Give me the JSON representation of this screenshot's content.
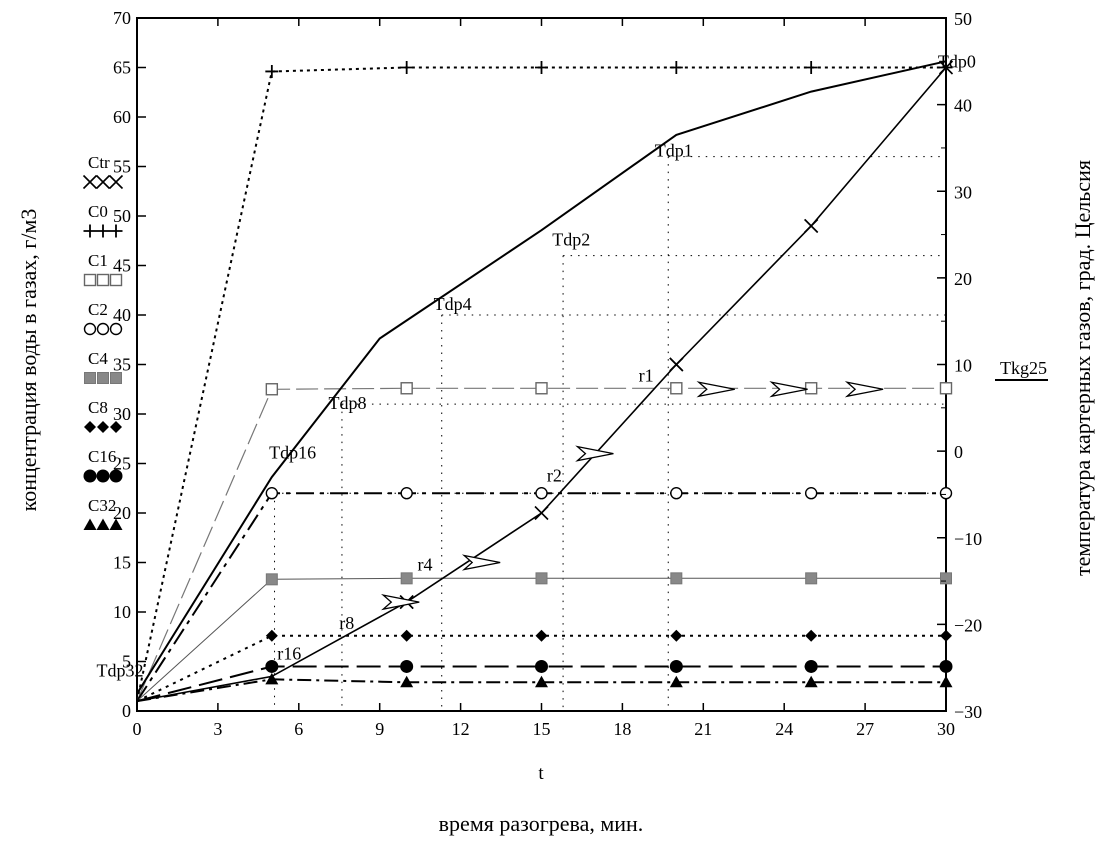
{
  "chart_data": {
    "type": "line",
    "xlabel": "t",
    "xlabel2": "время разогрева, мин.",
    "ylabel_left": "концентрация  воды в газах, г/м3",
    "ylabel_right": "температура картерных газов, град. Цельсия",
    "x_ticks": [
      "0",
      "3",
      "6",
      "9",
      "12",
      "15",
      "18",
      "21",
      "24",
      "27",
      "30"
    ],
    "y_left_ticks": [
      "0",
      "5",
      "10",
      "15",
      "20",
      "25",
      "30",
      "35",
      "40",
      "45",
      "50",
      "55",
      "60",
      "65",
      "70"
    ],
    "y_right_ticks": [
      "−30",
      "−20",
      "−10",
      "0",
      "10",
      "20",
      "30",
      "40",
      "50"
    ],
    "xlim": [
      0,
      30
    ],
    "ylim_left": [
      0,
      70
    ],
    "ylim_right": [
      -30,
      50
    ],
    "grid": "dotted drop lines from dew points",
    "legend_left": [
      {
        "name": "Ctr",
        "marker": "x"
      },
      {
        "name": "C0",
        "marker": "+"
      },
      {
        "name": "C1",
        "marker": "square-open"
      },
      {
        "name": "C2",
        "marker": "circle-open"
      },
      {
        "name": "C4",
        "marker": "square-gray"
      },
      {
        "name": "C8",
        "marker": "diamond"
      },
      {
        "name": "C16",
        "marker": "circle"
      },
      {
        "name": "C32",
        "marker": "triangle"
      }
    ],
    "legend_right": {
      "name": "Tkg25"
    },
    "series_left": [
      {
        "name": "C0",
        "x": [
          0,
          5,
          10,
          15,
          20,
          25,
          30
        ],
        "y": [
          1,
          64.6,
          65,
          65,
          65,
          65,
          65
        ]
      },
      {
        "name": "C1",
        "x": [
          0,
          5,
          10,
          15,
          20,
          25,
          30
        ],
        "y": [
          1,
          32.5,
          32.6,
          32.6,
          32.6,
          32.6,
          32.6
        ]
      },
      {
        "name": "C2",
        "x": [
          0,
          5,
          10,
          15,
          20,
          25,
          30
        ],
        "y": [
          1,
          22,
          22,
          22,
          22,
          22,
          22
        ]
      },
      {
        "name": "C4",
        "x": [
          0,
          5,
          10,
          15,
          20,
          25,
          30
        ],
        "y": [
          1,
          13.3,
          13.4,
          13.4,
          13.4,
          13.4,
          13.4
        ]
      },
      {
        "name": "C8",
        "x": [
          0,
          5,
          10,
          15,
          20,
          25,
          30
        ],
        "y": [
          1,
          7.6,
          7.6,
          7.6,
          7.6,
          7.6,
          7.6
        ]
      },
      {
        "name": "C16",
        "x": [
          0,
          5,
          10,
          15,
          20,
          25,
          30
        ],
        "y": [
          1,
          4.5,
          4.5,
          4.5,
          4.5,
          4.5,
          4.5
        ]
      },
      {
        "name": "C32",
        "x": [
          0,
          5,
          10,
          15,
          20,
          25,
          30
        ],
        "y": [
          1,
          3.2,
          2.9,
          2.9,
          2.9,
          2.9,
          2.9
        ]
      },
      {
        "name": "Ctr",
        "x": [
          0,
          5,
          10,
          15,
          20,
          25,
          30
        ],
        "y": [
          1,
          3.5,
          11,
          20,
          35,
          49,
          65
        ]
      }
    ],
    "series_right": [
      {
        "name": "Tkg25",
        "x": [
          0,
          5,
          9,
          15,
          20,
          25,
          30
        ],
        "y": [
          -28,
          -3,
          13,
          25.5,
          36.5,
          41.5,
          45
        ]
      }
    ],
    "arrow_markers": [
      {
        "x": 9.8,
        "y": 11
      },
      {
        "x": 12.8,
        "y": 15
      },
      {
        "x": 17,
        "y": 26
      },
      {
        "x": 21.5,
        "y": 32.5
      },
      {
        "x": 24.2,
        "y": 32.5
      },
      {
        "x": 27,
        "y": 32.5
      }
    ],
    "annotations": [
      {
        "text": "Tdp0",
        "x": 29.7,
        "y": 65
      },
      {
        "text": "Tdp1",
        "x": 19.2,
        "y": 56
      },
      {
        "text": "Tdp2",
        "x": 15.4,
        "y": 47
      },
      {
        "text": "Tdp4",
        "x": 11,
        "y": 40.5
      },
      {
        "text": "Tdp8",
        "x": 7.1,
        "y": 30.5
      },
      {
        "text": "Tdp16",
        "x": 4.9,
        "y": 25.5
      },
      {
        "text": "Tdp32",
        "x": -1.5,
        "y": 3.5
      },
      {
        "text": "r1",
        "x": 18.6,
        "y": 33.3
      },
      {
        "text": "r2",
        "x": 15.2,
        "y": 23.2
      },
      {
        "text": "r4",
        "x": 10.4,
        "y": 14.2
      },
      {
        "text": "r8",
        "x": 7.5,
        "y": 8.3
      },
      {
        "text": "r16",
        "x": 5.2,
        "y": 5.2
      }
    ],
    "dew_points": [
      {
        "x": 19.7,
        "y": 56
      },
      {
        "x": 15.8,
        "y": 46
      },
      {
        "x": 11.3,
        "y": 40
      },
      {
        "x": 7.6,
        "y": 31
      },
      {
        "x": 5.1,
        "y": 22
      }
    ]
  }
}
